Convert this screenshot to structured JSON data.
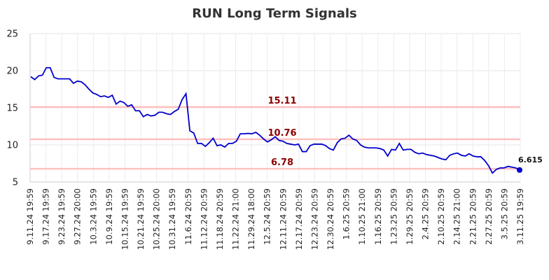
{
  "chart_data": {
    "type": "line",
    "title": "RUN Long Term Signals",
    "xlabel": "",
    "ylabel": "",
    "ylim": [
      5,
      25
    ],
    "yticks": [
      5,
      10,
      15,
      20,
      25
    ],
    "grid": true,
    "xtick_labels": [
      "9.11.24 19:59",
      "9.17.24 19:59",
      "9.23.24 19:59",
      "9.27.24 20:00",
      "10.3.24 19:59",
      "10.9.24 19:59",
      "10.15.24 19:59",
      "10.21.24 19:59",
      "10.25.24 20:00",
      "10.31.24 19:59",
      "11.6.24 20:59",
      "11.12.24 20:59",
      "11.18.24 20:59",
      "11.22.24 21:00",
      "11.29.24 18:00",
      "12.5.24 20:59",
      "12.11.24 20:59",
      "12.17.24 20:59",
      "12.23.24 20:59",
      "12.30.24 20:59",
      "1.6.25 20:59",
      "1.10.25 21:00",
      "1.16.25 20:59",
      "1.23.25 20:59",
      "1.29.25 20:59",
      "2.4.25 20:59",
      "2.10.25 20:59",
      "2.14.25 21:00",
      "2.21.25 20:59",
      "2.27.25 20:59",
      "3.5.25 20:59",
      "3.11.25 19:59"
    ],
    "series": [
      {
        "color": "#0000cc",
        "values": [
          19.2,
          18.8,
          19.3,
          19.4,
          20.4,
          20.4,
          19.1,
          18.9,
          18.9,
          18.9,
          18.9,
          18.3,
          18.6,
          18.5,
          18.1,
          17.5,
          17.0,
          16.8,
          16.5,
          16.6,
          16.4,
          16.7,
          15.5,
          15.9,
          15.7,
          15.2,
          15.4,
          14.6,
          14.6,
          13.8,
          14.1,
          13.9,
          14.0,
          14.4,
          14.4,
          14.2,
          14.1,
          14.5,
          14.8,
          16.1,
          16.9,
          11.9,
          11.6,
          10.2,
          10.2,
          9.8,
          10.3,
          10.9,
          9.9,
          10.0,
          9.7,
          10.2,
          10.2,
          10.5,
          11.5,
          11.5,
          11.55,
          11.5,
          11.7,
          11.3,
          10.8,
          10.4,
          10.7,
          11.1,
          10.6,
          10.5,
          10.2,
          10.1,
          10.0,
          10.1,
          9.1,
          9.1,
          9.9,
          10.1,
          10.1,
          10.1,
          9.9,
          9.5,
          9.3,
          10.3,
          10.8,
          10.9,
          11.3,
          10.8,
          10.6,
          10.0,
          9.7,
          9.6,
          9.6,
          9.6,
          9.5,
          9.3,
          8.5,
          9.4,
          9.3,
          10.2,
          9.3,
          9.4,
          9.4,
          9.0,
          8.8,
          8.9,
          8.7,
          8.6,
          8.5,
          8.3,
          8.1,
          8.0,
          8.6,
          8.8,
          8.9,
          8.6,
          8.5,
          8.8,
          8.5,
          8.4,
          8.4,
          7.9,
          7.2,
          6.2,
          6.7,
          6.9,
          6.9,
          7.1,
          7.0,
          6.9,
          6.615
        ]
      }
    ],
    "reference_lines": [
      {
        "value": 15.11,
        "label": "15.11",
        "color": "#ffc0c0"
      },
      {
        "value": 10.76,
        "label": "10.76",
        "color": "#ffc0c0"
      },
      {
        "value": 6.78,
        "label": "6.78",
        "color": "#ffc0c0"
      }
    ],
    "last_value_label": "6.615"
  }
}
